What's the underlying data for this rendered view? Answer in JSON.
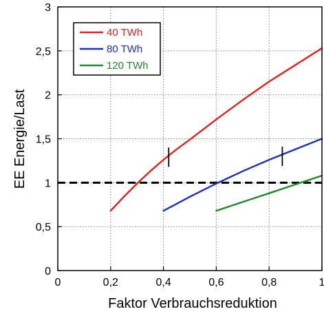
{
  "chart_data": {
    "type": "line",
    "title": "",
    "xlabel": "Faktor Verbrauchsreduktion",
    "ylabel": "EE Energie/Last",
    "xlim": [
      0,
      1
    ],
    "ylim": [
      0,
      3
    ],
    "grid": true,
    "legend_position": "top-left",
    "x_ticks": [
      {
        "value": 0,
        "label": "0"
      },
      {
        "value": 0.2,
        "label": "0,2"
      },
      {
        "value": 0.4,
        "label": "0,4"
      },
      {
        "value": 0.6,
        "label": "0,6"
      },
      {
        "value": 0.8,
        "label": "0,8"
      },
      {
        "value": 1,
        "label": "1"
      }
    ],
    "y_ticks": [
      {
        "value": 0,
        "label": "0"
      },
      {
        "value": 0.5,
        "label": "0,5"
      },
      {
        "value": 1,
        "label": "1"
      },
      {
        "value": 1.5,
        "label": "1,5"
      },
      {
        "value": 2,
        "label": "2"
      },
      {
        "value": 2.5,
        "label": "2,5"
      },
      {
        "value": 3,
        "label": "3"
      }
    ],
    "series": [
      {
        "name": "40 TWh",
        "color": "#e0201b",
        "x": [
          0.2,
          0.25,
          0.3,
          0.35,
          0.4,
          0.45,
          0.5,
          0.6,
          0.7,
          0.8,
          0.9,
          1.0
        ],
        "y": [
          0.68,
          0.84,
          0.99,
          1.13,
          1.26,
          1.38,
          1.49,
          1.72,
          1.94,
          2.15,
          2.34,
          2.53
        ]
      },
      {
        "name": "80 TWh",
        "color": "#1b2fbf",
        "x": [
          0.4,
          0.5,
          0.6,
          0.7,
          0.8,
          0.9,
          1.0
        ],
        "y": [
          0.68,
          0.84,
          0.99,
          1.13,
          1.26,
          1.38,
          1.5
        ]
      },
      {
        "name": "120 TWh",
        "color": "#1f8a2a",
        "x": [
          0.6,
          0.7,
          0.8,
          0.9,
          1.0
        ],
        "y": [
          0.68,
          0.78,
          0.88,
          0.98,
          1.08
        ]
      }
    ],
    "reference_line": {
      "y": 1,
      "style": "dashed",
      "color": "#000000"
    },
    "markers": [
      {
        "x": 0.42,
        "y": 1.29
      },
      {
        "x": 0.85,
        "y": 1.3
      }
    ]
  }
}
